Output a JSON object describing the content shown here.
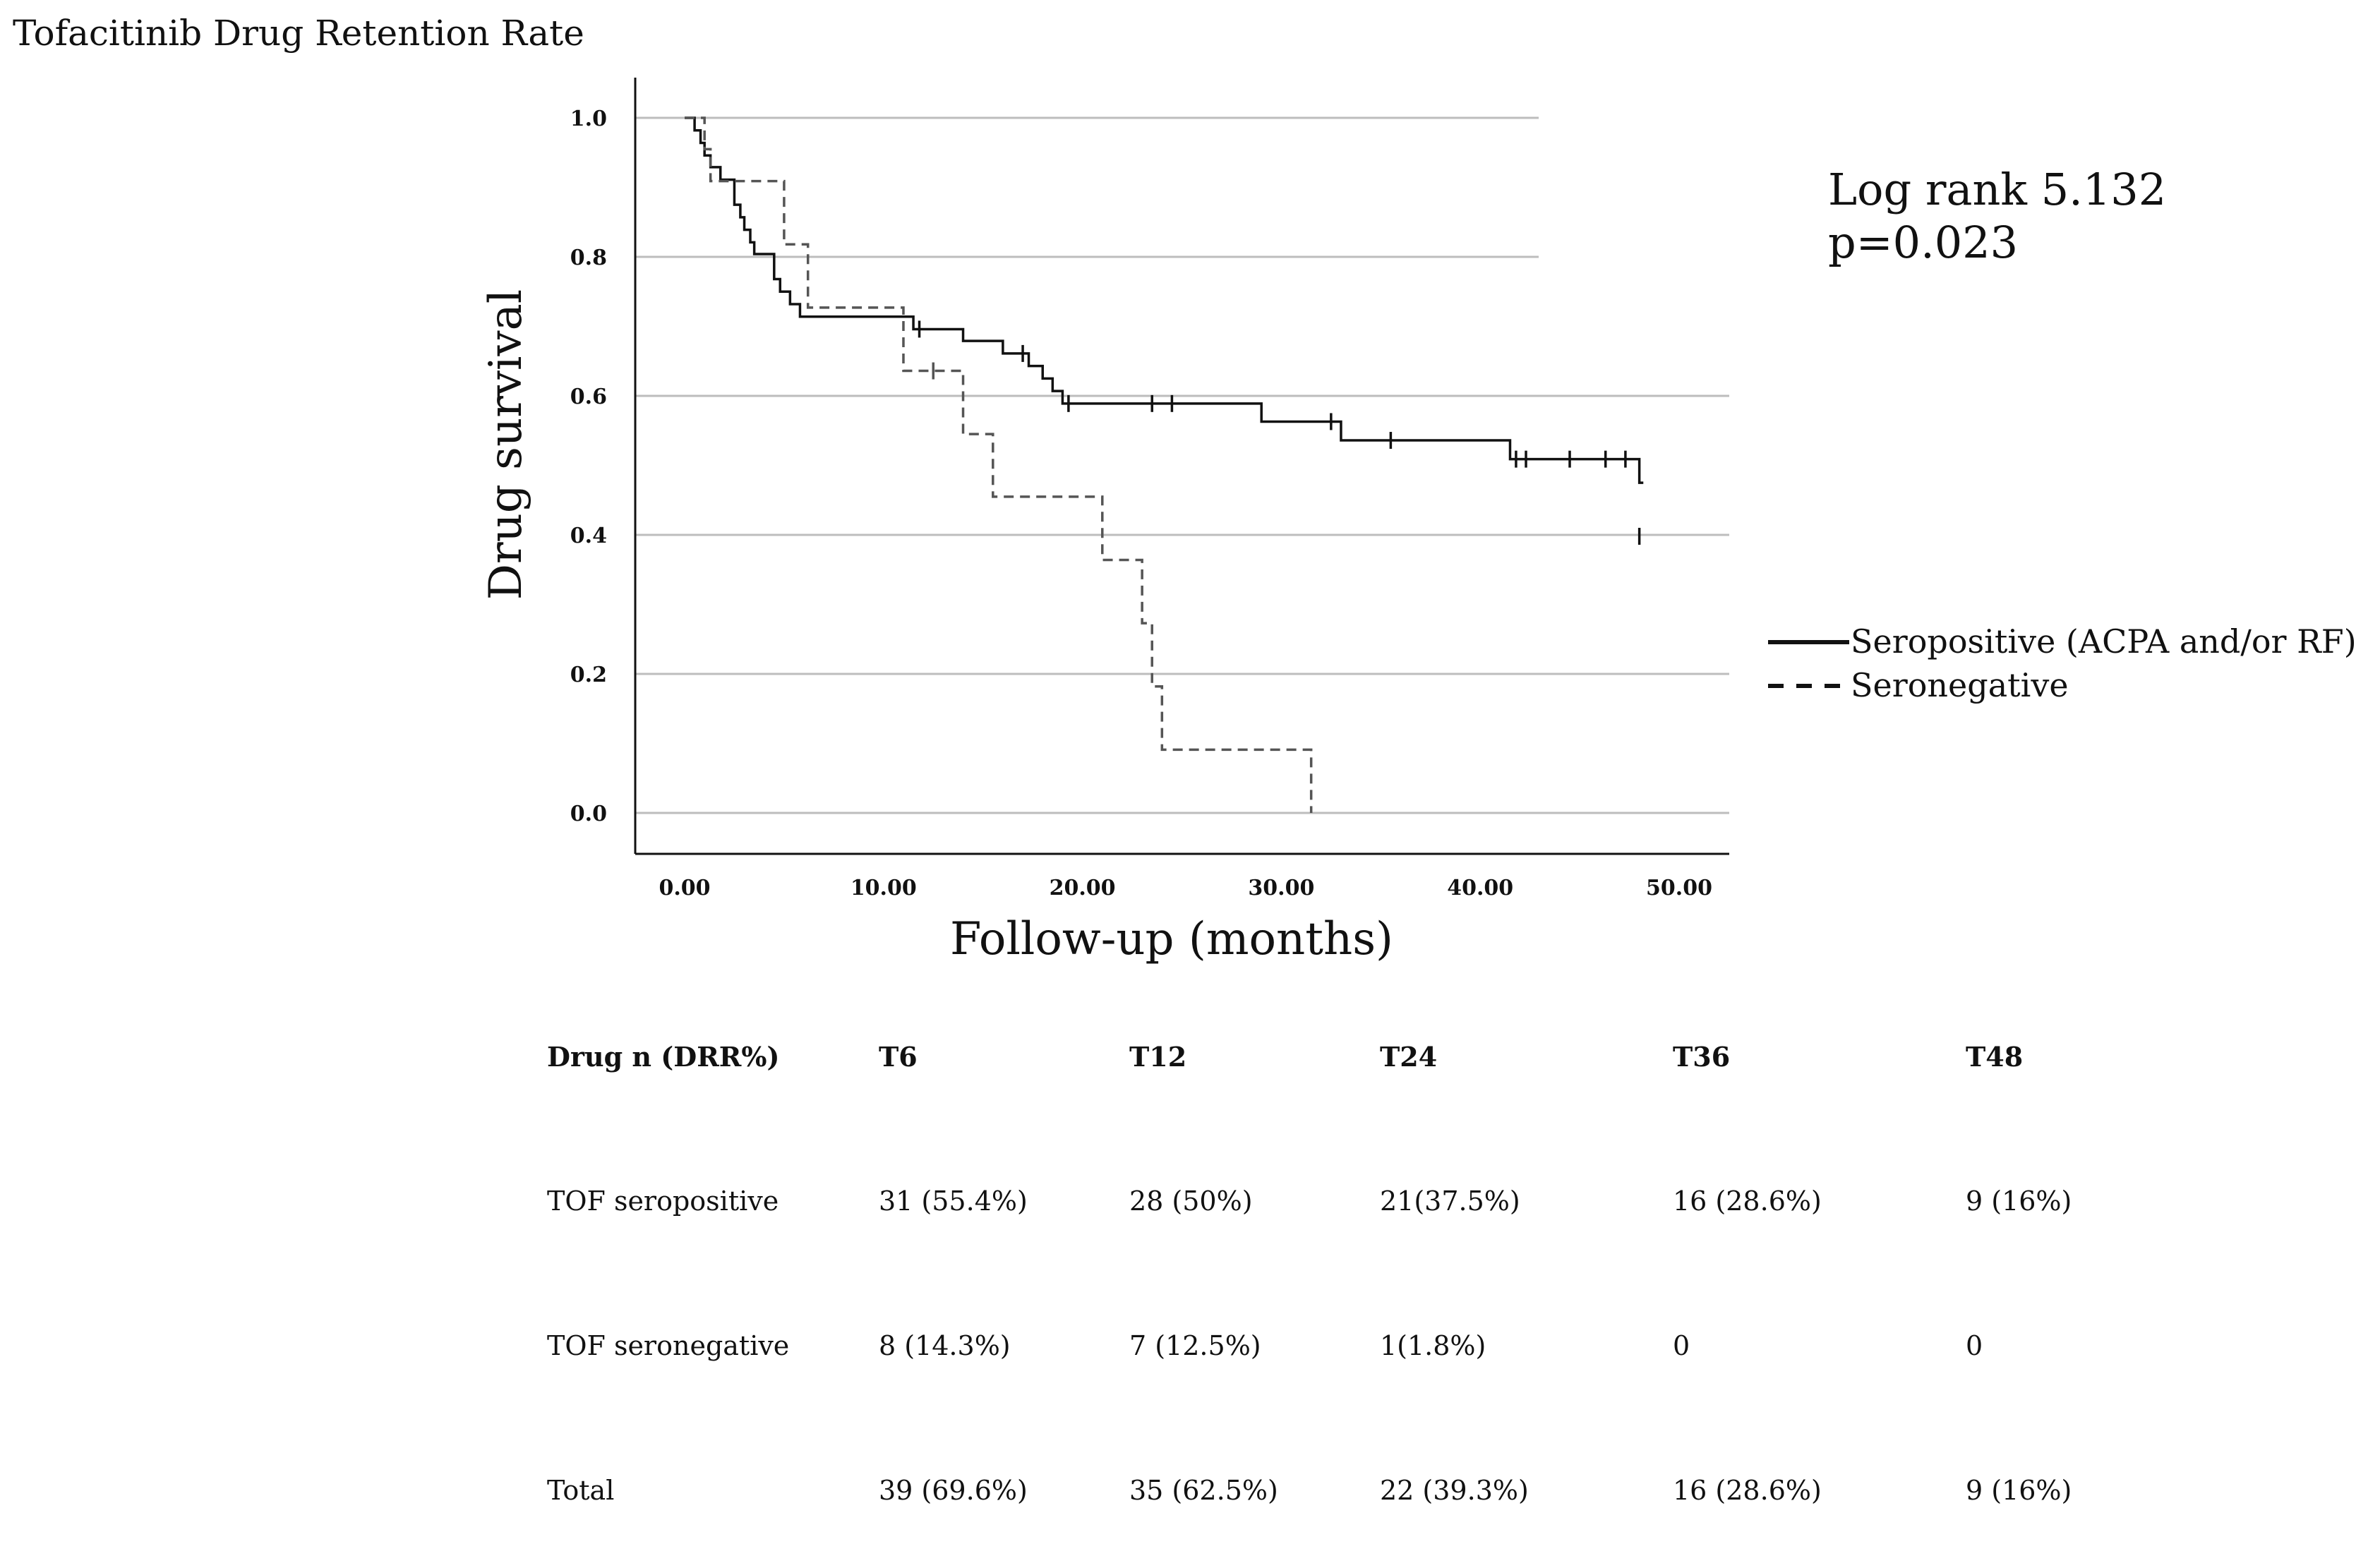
{
  "title": "Tofacitinib Drug Retention Rate",
  "chart_data": {
    "type": "line",
    "title": "Tofacitinib Drug Retention Rate",
    "xlabel": "Follow-up (months)",
    "ylabel": "Drug survival",
    "xlim": [
      0,
      52
    ],
    "ylim": [
      0,
      1.0
    ],
    "x_ticks": [
      "0.00",
      "10.00",
      "20.00",
      "30.00",
      "40.00",
      "50.00"
    ],
    "y_ticks": [
      "0.0",
      "0.2",
      "0.4",
      "0.6",
      "0.8",
      "1.0"
    ],
    "grid": true,
    "annotation": {
      "line1": "Log rank 5.132",
      "line2": "p=0.023"
    },
    "legend_position": "right",
    "series": [
      {
        "name": "Seropositive (ACPA and/or RF)",
        "style": "solid",
        "color": "#111111",
        "steps": [
          [
            0,
            1.0
          ],
          [
            0.5,
            0.982
          ],
          [
            0.8,
            0.964
          ],
          [
            1.0,
            0.946
          ],
          [
            1.3,
            0.929
          ],
          [
            1.8,
            0.911
          ],
          [
            2.5,
            0.875
          ],
          [
            2.8,
            0.857
          ],
          [
            3.0,
            0.839
          ],
          [
            3.3,
            0.821
          ],
          [
            3.5,
            0.804
          ],
          [
            4.5,
            0.768
          ],
          [
            4.8,
            0.75
          ],
          [
            5.3,
            0.732
          ],
          [
            5.8,
            0.714
          ],
          [
            11.5,
            0.696
          ],
          [
            14.0,
            0.679
          ],
          [
            16.0,
            0.661
          ],
          [
            17.3,
            0.643
          ],
          [
            18.0,
            0.625
          ],
          [
            18.5,
            0.607
          ],
          [
            19.0,
            0.589
          ],
          [
            29.0,
            0.563
          ],
          [
            33.0,
            0.536
          ],
          [
            41.5,
            0.509
          ],
          [
            48.0,
            0.475
          ],
          [
            48.2,
            0.475
          ]
        ],
        "censored": [
          [
            11.8,
            0.696
          ],
          [
            17.0,
            0.661
          ],
          [
            19.3,
            0.589
          ],
          [
            23.5,
            0.589
          ],
          [
            24.5,
            0.589
          ],
          [
            32.5,
            0.563
          ],
          [
            35.5,
            0.536
          ],
          [
            41.8,
            0.509
          ],
          [
            42.3,
            0.509
          ],
          [
            44.5,
            0.509
          ],
          [
            46.3,
            0.509
          ],
          [
            47.3,
            0.509
          ],
          [
            48.0,
            0.398
          ]
        ]
      },
      {
        "name": "Seronegative",
        "style": "dashed",
        "color": "#555555",
        "steps": [
          [
            0,
            1.0
          ],
          [
            1.0,
            0.955
          ],
          [
            1.3,
            0.909
          ],
          [
            5.0,
            0.818
          ],
          [
            6.2,
            0.727
          ],
          [
            11.0,
            0.636
          ],
          [
            14.0,
            0.545
          ],
          [
            15.5,
            0.455
          ],
          [
            21.0,
            0.364
          ],
          [
            23.0,
            0.273
          ],
          [
            23.5,
            0.182
          ],
          [
            24.0,
            0.091
          ],
          [
            31.5,
            0.0
          ]
        ],
        "censored": [
          [
            12.5,
            0.636
          ]
        ]
      }
    ]
  },
  "table": {
    "headers": [
      "Drug n (DRR%)",
      "T6",
      "T12",
      "T24",
      "T36",
      "T48"
    ],
    "rows": [
      [
        "TOF seropositive",
        "31 (55.4%)",
        "28 (50%)",
        "21(37.5%)",
        "16 (28.6%)",
        "9 (16%)"
      ],
      [
        "TOF seronegative",
        "8 (14.3%)",
        "7 (12.5%)",
        "1(1.8%)",
        "0",
        "0"
      ],
      [
        "Total",
        "39 (69.6%)",
        "35 (62.5%)",
        "22 (39.3%)",
        "16 (28.6%)",
        "9 (16%)"
      ]
    ]
  }
}
